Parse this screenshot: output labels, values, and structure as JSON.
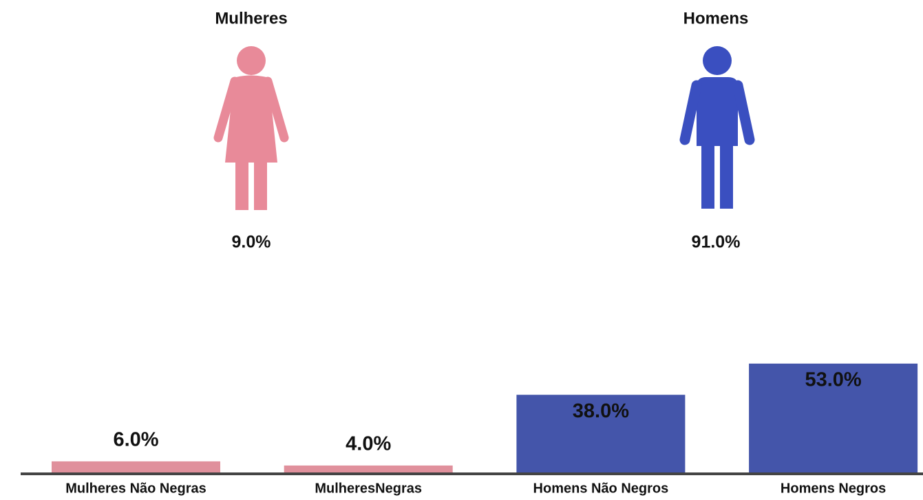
{
  "chart_data": [
    {
      "type": "pictogram",
      "categories": [
        "Mulheres",
        "Homens"
      ],
      "values": [
        9,
        91
      ],
      "value_labels": [
        "9.0%",
        "91.0%"
      ],
      "colors": [
        "#e88a99",
        "#3a4fc0"
      ]
    },
    {
      "type": "bar",
      "categories": [
        "Mulheres Não Negras",
        "MulheresNegras",
        "Homens Não Negros",
        "Homens Negros"
      ],
      "values": [
        6,
        4,
        38,
        53
      ],
      "value_labels": [
        "6.0%",
        "4.0%",
        "38.0%",
        "53.0%"
      ],
      "colors": [
        "#e0909c",
        "#e0909c",
        "#4455aa",
        "#4455aa"
      ]
    }
  ]
}
